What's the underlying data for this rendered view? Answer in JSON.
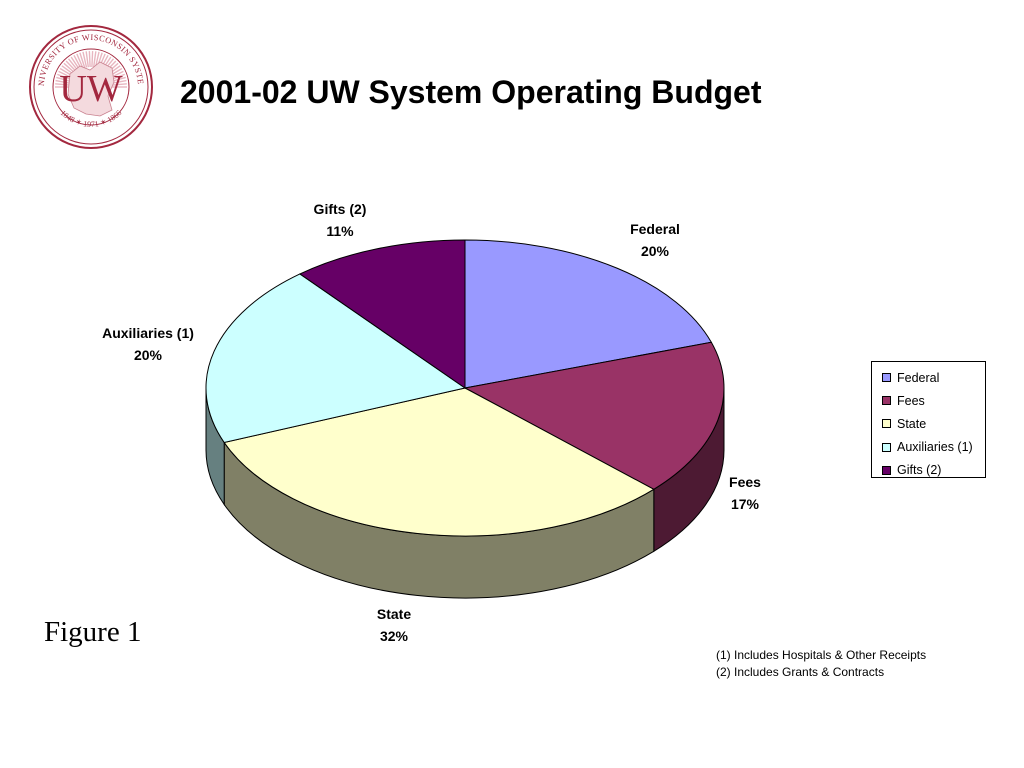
{
  "title": "2001-02 UW System Operating Budget",
  "logo": {
    "ring_text": "UNIVERSITY OF WISCONSIN SYSTEM",
    "monogram": "UW",
    "years": "1848 ✶ 1971 ✶ 1866",
    "color": "#a3283f"
  },
  "figure_label": "Figure 1",
  "footnotes": [
    "(1) Includes Hospitals & Other Receipts",
    "(2) Includes Grants & Contracts"
  ],
  "chart_data": {
    "type": "pie",
    "style": "3d-pie",
    "title": "",
    "slices": [
      {
        "name": "Federal",
        "value": 20,
        "label": "20%",
        "color": "#9999ff",
        "side_color": "#5f5fa0"
      },
      {
        "name": "Fees",
        "value": 17,
        "label": "17%",
        "color": "#993366",
        "side_color": "#4d1a33"
      },
      {
        "name": "State",
        "value": 32,
        "label": "32%",
        "color": "#ffffcc",
        "side_color": "#808066"
      },
      {
        "name": "Auxiliaries (1)",
        "value": 20,
        "label": "20%",
        "color": "#ccffff",
        "side_color": "#668080"
      },
      {
        "name": "Gifts (2)",
        "value": 11,
        "label": "11%",
        "color": "#660066",
        "side_color": "#330033"
      }
    ],
    "legend": {
      "placement": "right",
      "entries": [
        "Federal",
        "Fees",
        "State",
        "Auxiliaries (1)",
        "Gifts (2)"
      ]
    }
  }
}
